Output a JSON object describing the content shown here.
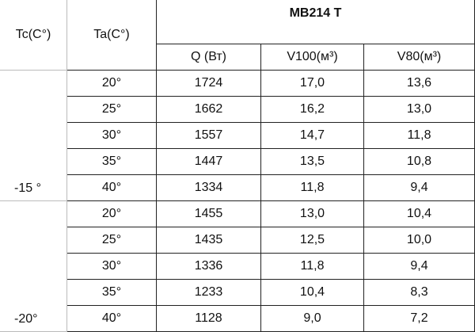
{
  "header": {
    "tc": "Tc(C°)",
    "ta": "Ta(C°)",
    "group": "MB214 T",
    "columns": [
      "Q (Вт)",
      "V100(м³)",
      "V80(м³)"
    ]
  },
  "groups": [
    {
      "tc": "-15 °",
      "rows": [
        [
          "20°",
          "1724",
          "17,0",
          "13,6"
        ],
        [
          "25°",
          "1662",
          "16,2",
          "13,0"
        ],
        [
          "30°",
          "1557",
          "14,7",
          "11,8"
        ],
        [
          "35°",
          "1447",
          "13,5",
          "10,8"
        ],
        [
          "40°",
          "1334",
          "11,8",
          "9,4"
        ]
      ]
    },
    {
      "tc": "-20°",
      "rows": [
        [
          "20°",
          "1455",
          "13,0",
          "10,4"
        ],
        [
          "25°",
          "1435",
          "12,5",
          "10,0"
        ],
        [
          "30°",
          "1336",
          "11,8",
          "9,4"
        ],
        [
          "35°",
          "1233",
          "10,4",
          "8,3"
        ],
        [
          "40°",
          "1128",
          "9,0",
          "7,2"
        ]
      ]
    }
  ]
}
